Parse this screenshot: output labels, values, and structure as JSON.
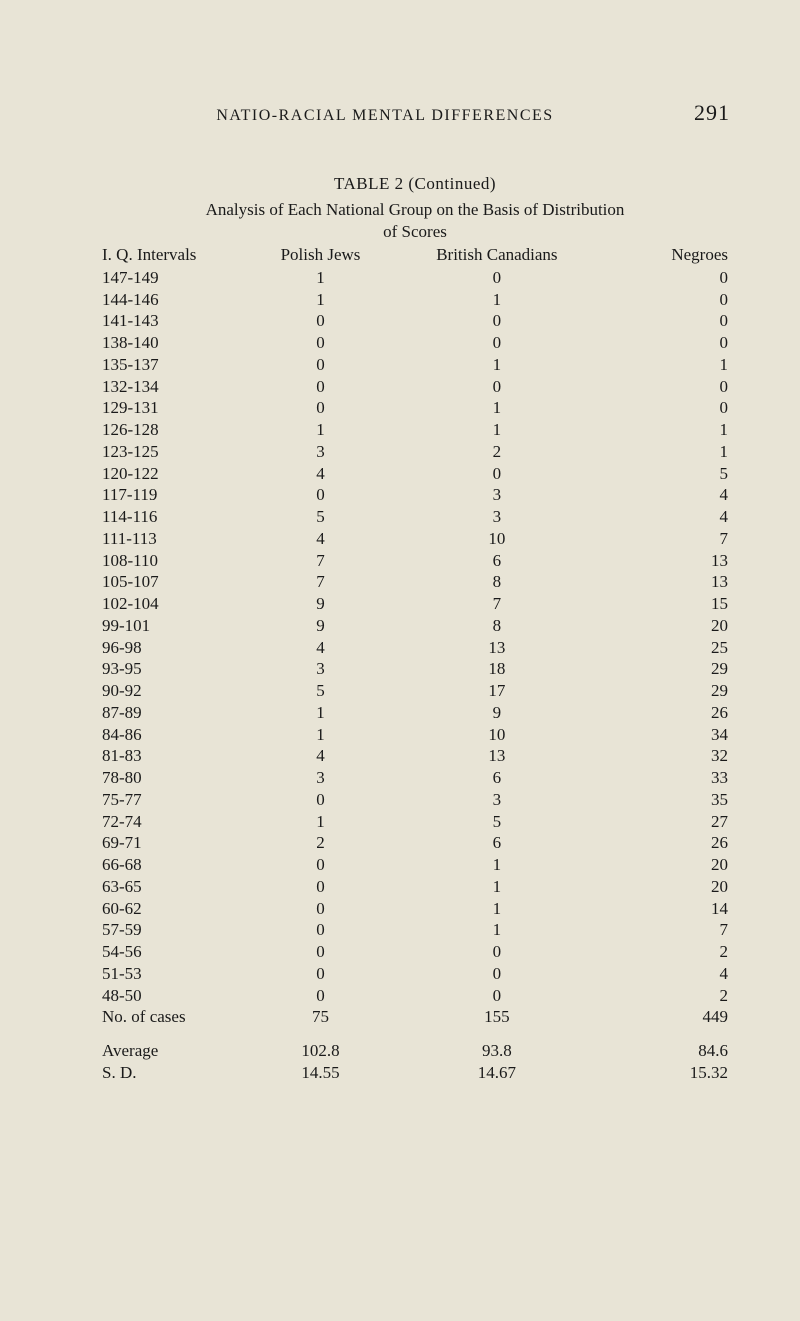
{
  "page": {
    "running_head": "NATIO-RACIAL MENTAL DIFFERENCES",
    "page_number": "291"
  },
  "table": {
    "type": "table",
    "title": "TABLE 2 (Continued)",
    "subtitle_1": "Analysis of Each National Group on the Basis of Distribution",
    "subtitle_2": "of Scores",
    "columns": [
      "I. Q. Intervals",
      "Polish Jews",
      "British Canadians",
      "Negroes"
    ],
    "column_align": [
      "left",
      "center",
      "center",
      "right"
    ],
    "column_widths_pct": [
      22,
      26,
      30,
      22
    ],
    "font_size_pt": 17,
    "background_color": "#e8e4d6",
    "text_color": "#1a1a1a",
    "rows": [
      [
        "147-149",
        "1",
        "0",
        "0"
      ],
      [
        "144-146",
        "1",
        "1",
        "0"
      ],
      [
        "141-143",
        "0",
        "0",
        "0"
      ],
      [
        "138-140",
        "0",
        "0",
        "0"
      ],
      [
        "135-137",
        "0",
        "1",
        "1"
      ],
      [
        "132-134",
        "0",
        "0",
        "0"
      ],
      [
        "129-131",
        "0",
        "1",
        "0"
      ],
      [
        "126-128",
        "1",
        "1",
        "1"
      ],
      [
        "123-125",
        "3",
        "2",
        "1"
      ],
      [
        "120-122",
        "4",
        "0",
        "5"
      ],
      [
        "117-119",
        "0",
        "3",
        "4"
      ],
      [
        "114-116",
        "5",
        "3",
        "4"
      ],
      [
        "111-113",
        "4",
        "10",
        "7"
      ],
      [
        "108-110",
        "7",
        "6",
        "13"
      ],
      [
        "105-107",
        "7",
        "8",
        "13"
      ],
      [
        "102-104",
        "9",
        "7",
        "15"
      ],
      [
        "99-101",
        "9",
        "8",
        "20"
      ],
      [
        "96-98",
        "4",
        "13",
        "25"
      ],
      [
        "93-95",
        "3",
        "18",
        "29"
      ],
      [
        "90-92",
        "5",
        "17",
        "29"
      ],
      [
        "87-89",
        "1",
        "9",
        "26"
      ],
      [
        "84-86",
        "1",
        "10",
        "34"
      ],
      [
        "81-83",
        "4",
        "13",
        "32"
      ],
      [
        "78-80",
        "3",
        "6",
        "33"
      ],
      [
        "75-77",
        "0",
        "3",
        "35"
      ],
      [
        "72-74",
        "1",
        "5",
        "27"
      ],
      [
        "69-71",
        "2",
        "6",
        "26"
      ],
      [
        "66-68",
        "0",
        "1",
        "20"
      ],
      [
        "63-65",
        "0",
        "1",
        "20"
      ],
      [
        "60-62",
        "0",
        "1",
        "14"
      ],
      [
        "57-59",
        "0",
        "1",
        "7"
      ],
      [
        "54-56",
        "0",
        "0",
        "2"
      ],
      [
        "51-53",
        "0",
        "0",
        "4"
      ],
      [
        "48-50",
        "0",
        "0",
        "2"
      ],
      [
        "No. of cases",
        "75",
        "155",
        "449"
      ]
    ],
    "summary": [
      [
        "Average",
        "102.8",
        "93.8",
        "84.6"
      ],
      [
        "S. D.",
        "14.55",
        "14.67",
        "15.32"
      ]
    ]
  }
}
